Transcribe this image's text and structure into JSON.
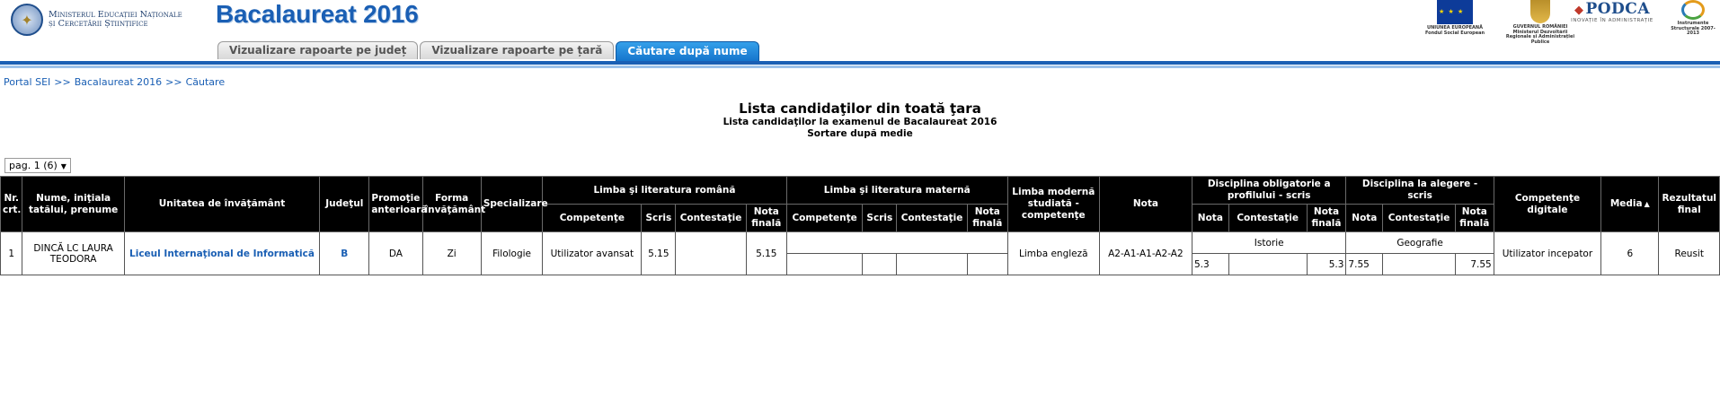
{
  "header": {
    "ministry_line1": "Ministerul Educației Naționale",
    "ministry_line2": "și Cercetării Științifice",
    "app_title": "Bacalaureat 2016",
    "logos": {
      "eu_caption": "UNIUNEA EUROPEANĂ Fondul Social European",
      "gov_caption": "GUVERNUL ROMÂNIEI Ministerul Dezvoltării Regionale și Administrației Publice",
      "podca_name": "PODCA",
      "podca_caption": "INOVAȚIE ÎN ADMINISTRAȚIE",
      "is_caption": "Instrumente Structurale 2007-2013"
    }
  },
  "tabs": [
    {
      "label": "Vizualizare rapoarte pe județ",
      "active": false
    },
    {
      "label": "Vizualizare rapoarte pe țară",
      "active": false
    },
    {
      "label": "Căutare după nume",
      "active": true
    }
  ],
  "breadcrumb": {
    "item1": "Portal SEI",
    "item2": "Bacalaureat 2016",
    "item3": "Căutare",
    "separator": ">>"
  },
  "titles": {
    "main": "Lista candidaţilor din toată ţara",
    "sub1": "Lista candidaţilor la examenul de Bacalaureat 2016",
    "sub2": "Sortare după medie"
  },
  "pager": {
    "value": "pag. 1 (6)"
  },
  "table": {
    "headers": {
      "nr": "Nr. crt.",
      "nume": "Nume, iniţiala tatălui, prenume",
      "unitate": "Unitatea de învăţământ",
      "judet": "Judeţul",
      "promotie": "Promoţie anterioară",
      "forma": "Forma învăţământ",
      "specializare": "Specializare",
      "limba_romana": "Limba şi literatura română",
      "limba_materna": "Limba şi literatura maternă",
      "limba_moderna": "Limba modernă studiată - competenţe",
      "nota": "Nota",
      "disc_obligatorie": "Disciplina obligatorie a profilului - scris",
      "disc_alegere": "Disciplina la alegere - scris",
      "competente_digitale": "Competenţe digitale",
      "media": "Media",
      "rezultat": "Rezultatul final",
      "sub_competente": "Competenţe",
      "sub_scris": "Scris",
      "sub_contestatie": "Contestaţie",
      "sub_nota_finala": "Nota finală",
      "sub_nota": "Nota"
    },
    "rows": [
      {
        "nr": "1",
        "nume": "DINCĂ LC LAURA TEODORA",
        "unitate": "Liceul Internaţional de Informatică",
        "judet": "B",
        "promotie": "DA",
        "forma": "Zi",
        "specializare": "Filologie",
        "ro_competente": "Utilizator avansat",
        "ro_scris": "5.15",
        "ro_contestatie": "",
        "ro_nota_finala": "5.15",
        "lm_competente": "",
        "lm_scris": "",
        "lm_contestatie": "",
        "lm_nota_finala": "",
        "limba_moderna": "Limba engleză",
        "nota": "A2-A1-A1-A2-A2",
        "obl_disciplina": "Istorie",
        "obl_nota": "5.3",
        "obl_contestatie": "",
        "obl_nota_finala": "5.3",
        "ale_disciplina": "Geografie",
        "ale_nota": "7.55",
        "ale_contestatie": "",
        "ale_nota_finala": "7.55",
        "competente_digitale": "Utilizator incepator",
        "media": "6",
        "rezultat": "Reusit"
      }
    ]
  }
}
